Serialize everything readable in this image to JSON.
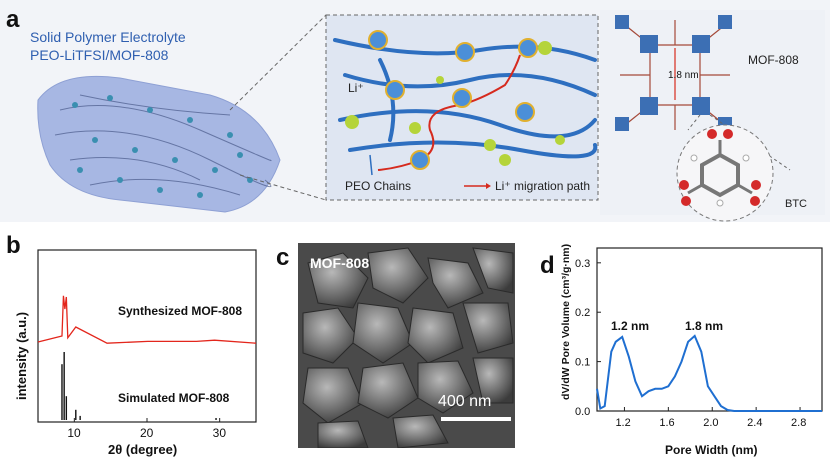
{
  "panel_a": {
    "letter": "a",
    "title_line1": "Solid Polymer Electrolyte",
    "title_line2": "PEO-LiTFSI/MOF-808",
    "li_label": "Li⁺",
    "peo_label": "PEO Chains",
    "path_label": "Li⁺ migration path",
    "pore_label": "1.8 nm",
    "mof_label": "MOF-808",
    "btc_label": "BTC",
    "colors": {
      "chain": "#2e6fc0",
      "path": "#d62a1e",
      "li_ion": "#b5d43a",
      "membrane": "#9fb1de"
    }
  },
  "panel_b": {
    "letter": "b",
    "ylabel": "intensity (a.u.)",
    "xlabel": "2θ (degree)",
    "label_synth": "Synthesized MOF-808",
    "label_sim": "Simulated MOF-808",
    "xticks": [
      "10",
      "20",
      "30"
    ],
    "colors": {
      "synth": "#e3261c",
      "sim": "#111111"
    }
  },
  "panel_c": {
    "letter": "c",
    "label": "MOF-808",
    "scale_label": "400 nm"
  },
  "panel_d": {
    "letter": "d",
    "ylabel": "dV/dW Pore Volume (cm³/g·nm)",
    "xlabel": "Pore Width (nm)",
    "peak1": "1.2 nm",
    "peak2": "1.8 nm",
    "yticks": [
      "0.0",
      "0.1",
      "0.2",
      "0.3"
    ],
    "xticks": [
      "1.2",
      "1.6",
      "2.0",
      "2.4",
      "2.8"
    ],
    "color": "#1f6fd1"
  },
  "chart_data": [
    {
      "type": "line",
      "xlabel": "2θ (degree)",
      "ylabel": "intensity (a.u.)",
      "xlim": [
        5,
        35
      ],
      "series": [
        {
          "name": "Synthesized MOF-808",
          "x": [
            5,
            8.3,
            8.5,
            8.7,
            8.9,
            9.1,
            10.2,
            14.5,
            20.1,
            26.8,
            29.3,
            35
          ],
          "values": [
            0.05,
            0.15,
            0.82,
            0.6,
            0.8,
            0.12,
            0.3,
            0.03,
            0.06,
            0.06,
            0.08,
            0.03
          ]
        },
        {
          "name": "Simulated MOF-808",
          "x": [
            8.3,
            8.6,
            8.9,
            10.2,
            10.8,
            29.5
          ],
          "values": [
            0.82,
            1.0,
            0.35,
            0.15,
            0.06,
            0.03
          ]
        }
      ]
    },
    {
      "type": "line",
      "xlabel": "Pore Width (nm)",
      "ylabel": "dV/dW Pore Volume (cm³/g·nm)",
      "xlim": [
        0.95,
        3.0
      ],
      "ylim": [
        0,
        0.33
      ],
      "series": [
        {
          "x": [
            0.95,
            0.98,
            1.02,
            1.08,
            1.12,
            1.18,
            1.24,
            1.3,
            1.36,
            1.42,
            1.48,
            1.54,
            1.6,
            1.66,
            1.72,
            1.78,
            1.84,
            1.9,
            1.96,
            2.02,
            2.08,
            2.14,
            2.2,
            2.4,
            2.6,
            2.8,
            3.0
          ],
          "values": [
            0.045,
            0.005,
            0.01,
            0.12,
            0.14,
            0.15,
            0.11,
            0.06,
            0.03,
            0.04,
            0.045,
            0.045,
            0.05,
            0.07,
            0.1,
            0.14,
            0.152,
            0.12,
            0.05,
            0.03,
            0.01,
            0.002,
            0.0,
            0.0,
            0.0,
            0.0,
            0.0
          ]
        }
      ]
    }
  ]
}
